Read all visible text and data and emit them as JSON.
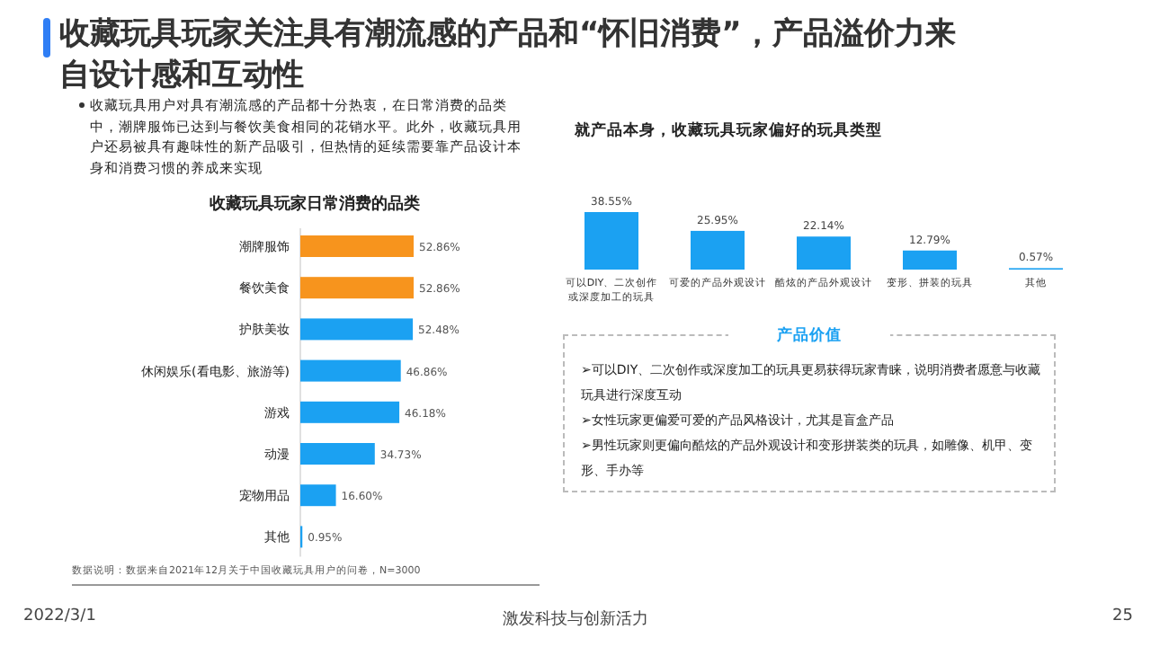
{
  "chart_data": [
    {
      "type": "other",
      "title": "收藏玩具玩家关注具有潮流感的产品和“怀旧消费”，产品溢价力来自设计感和互动性",
      "annotations": [
        "收藏玩具用户对具有潮流感的产品都十分热衷，在日常消费的品类中，潮牌服饰已达到与餐饮美食相同的花销水平。此外，收藏玩具用户还易被具有趣味性的新产品吸引，但热情的延续需要靠产品设计本身和消费习惯的养成来实现",
        "数据说明：数据来自2021年12月关于中国收藏玩具用户的问卷，N=3000",
        "2022/3/1",
        "激发科技与创新活力",
        "25"
      ]
    },
    {
      "type": "bar",
      "orientation": "horizontal",
      "title": "收藏玩具玩家日常消费的品类",
      "categories": [
        "潮牌服饰",
        "餐饮美食",
        "护肤美妆",
        "休闲娱乐(看电影、旅游等)",
        "游戏",
        "动漫",
        "宠物用品",
        "其他"
      ],
      "values": [
        52.86,
        52.86,
        52.48,
        46.86,
        46.18,
        34.73,
        16.6,
        0.95
      ],
      "value_labels": [
        "52.86%",
        "52.86%",
        "52.48%",
        "46.86%",
        "46.18%",
        "34.73%",
        "16.60%",
        "0.95%"
      ],
      "colors": [
        "#f7941d",
        "#f7941d",
        "#1ba1f2",
        "#1ba1f2",
        "#1ba1f2",
        "#1ba1f2",
        "#1ba1f2",
        "#1ba1f2"
      ]
    },
    {
      "type": "bar",
      "title": "就产品本身，收藏玩具玩家偏好的玩具类型",
      "categories": [
        "可以DIY、二次创作或深度加工的玩具",
        "可爱的产品外观设计",
        "酷炫的产品外观设计",
        "变形、拼装的玩具",
        "其他"
      ],
      "values": [
        38.55,
        25.95,
        22.14,
        12.79,
        0.57
      ],
      "value_labels": [
        "38.55%",
        "25.95%",
        "22.14%",
        "12.79%",
        "0.57%"
      ],
      "colors": [
        "#1ba1f2",
        "#1ba1f2",
        "#1ba1f2",
        "#1ba1f2",
        "#1ba1f2"
      ],
      "subtitle": "产品价值",
      "annotations": [
        "➢可以DIY、二次创作或深度加工的玩具更易获得玩家青睐，说明消费者愿意与收藏玩具进行深度互动",
        "➢女性玩家更偏爱可爱的产品风格设计，尤其是盲盒产品",
        "➢男性玩家则更偏向酷炫的产品外观设计和变形拼装类的玩具，如雕像、机甲、变形、手办等"
      ]
    }
  ]
}
